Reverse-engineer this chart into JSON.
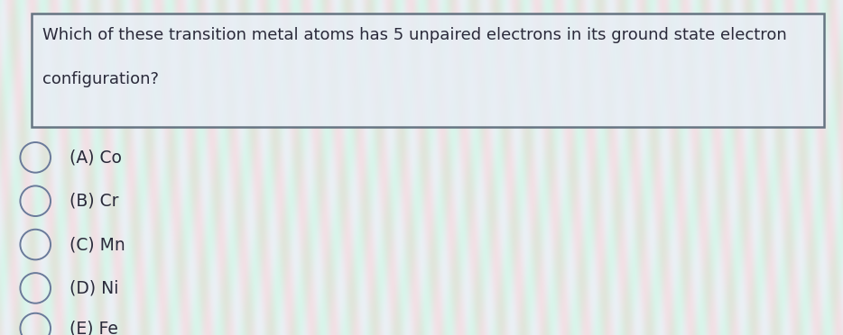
{
  "question_line1": "Which of these transition metal atoms has 5 unpaired electrons in its ground state electron",
  "question_line2": "configuration?",
  "options": [
    "(A) Co",
    "(B) Cr",
    "(C) Mn",
    "(D) Ni",
    "(E) Fe"
  ],
  "box_background": "#e8eef5",
  "box_border_color": "#4a5a6a",
  "text_color": "#2a2a3a",
  "circle_edge_color": "#6a7a9a",
  "question_fontsize": 13.0,
  "option_fontsize": 13.5,
  "fig_width": 9.34,
  "fig_height": 3.72,
  "dpi": 100
}
